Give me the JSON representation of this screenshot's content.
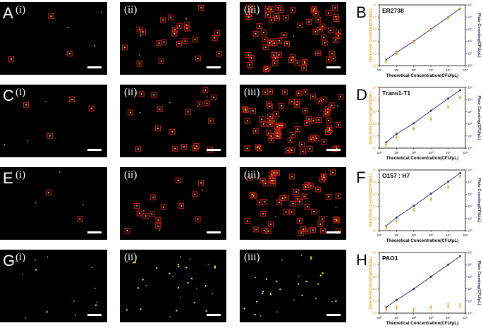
{
  "rows": [
    {
      "letter": "A",
      "chart_letter": "B",
      "panels": [
        "(i)",
        "(ii)",
        "(iii)"
      ],
      "counts": [
        3,
        22,
        62
      ],
      "style": "box",
      "chart_title": "ER2738"
    },
    {
      "letter": "C",
      "chart_letter": "D",
      "panels": [
        "(i)",
        "(ii)",
        "(iii)"
      ],
      "counts": [
        4,
        18,
        70
      ],
      "style": "box",
      "chart_title": "Trans1-T1"
    },
    {
      "letter": "E",
      "chart_letter": "F",
      "panels": [
        "(i)",
        "(ii)",
        "(iii)"
      ],
      "counts": [
        2,
        14,
        55
      ],
      "style": "box",
      "chart_title": "O157 : H7"
    },
    {
      "letter": "G",
      "chart_letter": "H",
      "panels": [
        "(i)",
        "(ii)",
        "(iii)"
      ],
      "counts": [
        3,
        20,
        18
      ],
      "style": "dots",
      "chart_title": "PAO1"
    }
  ],
  "colors": {
    "box": "#e0201a",
    "dot_core": "#ffe600",
    "orange": "#f39a1e",
    "navy": "#1d1d78",
    "axis": "#000000"
  },
  "axis_labels": {
    "left": "Dark-field Counting(CFU/μL)",
    "right": "Plate Counting(CFU/μL)",
    "x": "Theoretical Concentration(CFU/μL)"
  },
  "chart_data": [
    {
      "type": "scatter",
      "title": "ER2738",
      "xlabel": "Theoretical Concentration(CFU/μL)",
      "ylabel": "Dark-field Counting(CFU/μL)",
      "y2label": "Plate Counting(CFU/μL)",
      "log_scale": true,
      "xlim": [
        1,
        100000
      ],
      "ylim": [
        1,
        100000
      ],
      "series": [
        {
          "color": "#f39a1e",
          "x": [
            2.5,
            10,
            100,
            1000,
            10000,
            50000
          ],
          "y": [
            2.5,
            11,
            90,
            900,
            9000,
            48000
          ],
          "err": [
            0.15,
            0.15,
            0.12,
            0.12,
            0.1,
            0.08
          ]
        },
        {
          "color": "#1d1d78",
          "x": [
            2.5,
            10,
            100,
            1000,
            10000,
            50000
          ],
          "y": [
            3,
            12,
            100,
            1000,
            10000,
            50000
          ]
        }
      ]
    },
    {
      "type": "scatter",
      "title": "Trans1-T1",
      "xlabel": "Theoretical Concentration(CFU/μL)",
      "ylabel": "Dark-field Counting(CFU/μL)",
      "y2label": "Plate Counting(CFU/μL)",
      "log_scale": true,
      "xlim": [
        1,
        100000
      ],
      "ylim": [
        1,
        100000
      ],
      "series": [
        {
          "color": "#f39a1e",
          "x": [
            2.5,
            10,
            100,
            1000,
            10000,
            50000
          ],
          "y": [
            2,
            8,
            40,
            250,
            2500,
            15000
          ],
          "err": [
            0.15,
            0.15,
            0.12,
            0.12,
            0.1,
            0.08
          ]
        },
        {
          "color": "#1d1d78",
          "x": [
            2.5,
            10,
            100,
            1000,
            10000,
            50000
          ],
          "y": [
            3,
            15,
            110,
            1200,
            12000,
            60000
          ]
        }
      ]
    },
    {
      "type": "scatter",
      "title": "O157 : H7",
      "xlabel": "Theoretical Concentration(CFU/μL)",
      "ylabel": "Dark-field Counting(CFU/μL)",
      "y2label": "Plate Counting(CFU/μL)",
      "log_scale": true,
      "xlim": [
        1,
        100000
      ],
      "ylim": [
        1,
        100000
      ],
      "series": [
        {
          "color": "#f39a1e",
          "x": [
            2.5,
            10,
            100,
            1000,
            10000,
            50000
          ],
          "y": [
            2,
            6,
            50,
            400,
            4000,
            30000
          ],
          "err": [
            0.15,
            0.15,
            0.12,
            0.12,
            0.1,
            0.08
          ]
        },
        {
          "color": "#1d1d78",
          "x": [
            2.5,
            10,
            100,
            1000,
            10000,
            50000
          ],
          "y": [
            2.5,
            12,
            110,
            1100,
            11000,
            55000
          ]
        }
      ]
    },
    {
      "type": "scatter",
      "title": "PAO1",
      "xlabel": "Theoretical Concentration(CFU/μL)",
      "ylabel": "Dark-field Counting(CFU/μL)",
      "y2label": "Plate Counting(CFU/μL)",
      "log_scale": true,
      "xlim": [
        1,
        100000
      ],
      "ylim": [
        1,
        100000
      ],
      "series": [
        {
          "color": "#f39a1e",
          "x": [
            2.5,
            10,
            100,
            1000,
            10000,
            50000
          ],
          "y": [
            2,
            3,
            2,
            3,
            4,
            4
          ],
          "err": [
            0.2,
            0.2,
            0.2,
            0.2,
            0.2,
            0.2
          ]
        },
        {
          "color": "#1d1d78",
          "x": [
            2.5,
            10,
            100,
            1000,
            10000,
            50000
          ],
          "y": [
            3,
            12,
            100,
            1000,
            10000,
            50000
          ]
        }
      ]
    }
  ]
}
